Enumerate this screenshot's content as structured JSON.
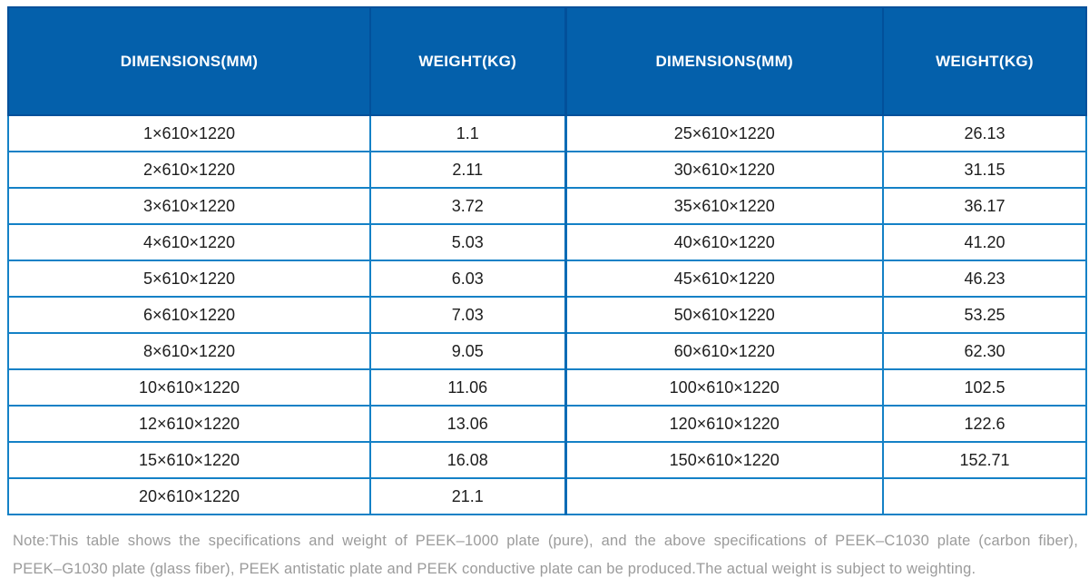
{
  "colors": {
    "header_bg": "#0460ab",
    "header_border": "#02509a",
    "grid_line": "#1481c6",
    "center_divider": "#0b6cb5",
    "header_text": "#ffffff",
    "body_text": "#1d1d1d",
    "note_text": "#9b9b9b"
  },
  "chart_data": {
    "type": "table",
    "columns": [
      "DIMENSIONS(MM)",
      "WEIGHT(KG)",
      "DIMENSIONS(MM)",
      "WEIGHT(KG)"
    ],
    "rows": [
      [
        "1×610×1220",
        "1.1",
        "25×610×1220",
        "26.13"
      ],
      [
        "2×610×1220",
        "2.11",
        "30×610×1220",
        "31.15"
      ],
      [
        "3×610×1220",
        "3.72",
        "35×610×1220",
        "36.17"
      ],
      [
        "4×610×1220",
        "5.03",
        "40×610×1220",
        "41.20"
      ],
      [
        "5×610×1220",
        "6.03",
        "45×610×1220",
        "46.23"
      ],
      [
        "6×610×1220",
        "7.03",
        "50×610×1220",
        "53.25"
      ],
      [
        "8×610×1220",
        "9.05",
        "60×610×1220",
        "62.30"
      ],
      [
        "10×610×1220",
        "11.06",
        "100×610×1220",
        "102.5"
      ],
      [
        "12×610×1220",
        "13.06",
        "120×610×1220",
        "122.6"
      ],
      [
        "15×610×1220",
        "16.08",
        "150×610×1220",
        "152.71"
      ],
      [
        "20×610×1220",
        "21.1",
        "",
        ""
      ]
    ],
    "note_lines": [
      "Note:This table shows the specifications and weight of PEEK–1000 plate (pure), and the above specifications of PEEK–C1030 plate (carbon fiber),",
      "PEEK–G1030 plate (glass fiber), PEEK antistatic plate and PEEK conductive plate can be produced.The actual weight is subject to weighting."
    ]
  }
}
